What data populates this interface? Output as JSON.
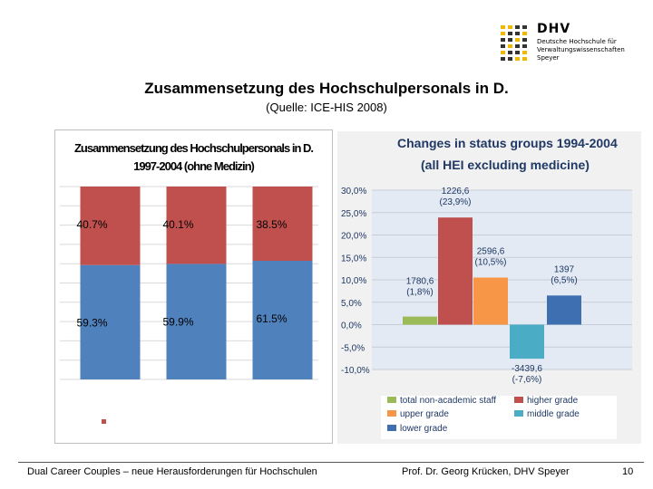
{
  "header": {
    "logo_name": "DHV",
    "logo_line1": "Deutsche Hochschule für",
    "logo_line2": "Verwaltungswissenschaften",
    "logo_line3": "Speyer",
    "title": "Zusammensetzung des Hochschulpersonals in D.",
    "subtitle": "(Quelle: ICE-HIS 2008)"
  },
  "colors": {
    "red": "#c0504d",
    "blue": "#4f81bd",
    "green": "#9bbb59",
    "orange": "#f79646",
    "cyan": "#4bacc6",
    "dark_blue": "#3e6fb0",
    "logo_yellow": "#f2b800"
  },
  "chart_data": [
    {
      "type": "bar",
      "stacked": true,
      "title_line1": "Zusammensetzung des Hochschulpersonals in D.",
      "title_line2": "1997-2004 (ohne Medizin)",
      "categories": [
        "",
        "",
        ""
      ],
      "series": [
        {
          "name": "",
          "color": "blue",
          "values": [
            59.3,
            59.9,
            61.5
          ],
          "labels": [
            "59.3%",
            "59.9%",
            "61.5%"
          ]
        },
        {
          "name": "",
          "color": "red",
          "values": [
            40.7,
            40.1,
            38.5
          ],
          "labels": [
            "40.7%",
            "40.1%",
            "38.5%"
          ]
        }
      ],
      "ylim": [
        0,
        100
      ],
      "legend": "bottom"
    },
    {
      "type": "bar",
      "title_line1": "Changes in status groups 1994-2004",
      "title_line2": "(all HEI excluding medicine)",
      "ylim": [
        -10,
        30
      ],
      "y_ticks": [
        -10,
        -5,
        0,
        5,
        10,
        15,
        20,
        25,
        30
      ],
      "y_tick_labels": [
        "-10,0%",
        "-5,0%",
        "0,0%",
        "5,0%",
        "10,0%",
        "15,0%",
        "20,0%",
        "25,0%",
        "30,0%"
      ],
      "bars": [
        {
          "name": "total non-academic staff",
          "value": 1.8,
          "label_abs": "1780,6",
          "label_pct": "(1,8%)",
          "color": "green"
        },
        {
          "name": "higher grade",
          "value": 23.9,
          "label_abs": "1226,6",
          "label_pct": "(23,9%)",
          "color": "red"
        },
        {
          "name": "upper grade",
          "value": 10.5,
          "label_abs": "2596,6",
          "label_pct": "(10,5%)",
          "color": "orange"
        },
        {
          "name": "middle grade",
          "value": -7.6,
          "label_abs": "-3439,6",
          "label_pct": "(-7,6%)",
          "color": "cyan"
        },
        {
          "name": "lower grade",
          "value": 6.5,
          "label_abs": "1397",
          "label_pct": "(6,5%)",
          "color": "dark_blue"
        }
      ],
      "legend": "bottom"
    }
  ],
  "footer": {
    "left": "Dual Career Couples – neue Herausforderungen für Hochschulen",
    "middle": "Prof. Dr. Georg Krücken, DHV Speyer",
    "page": "10"
  }
}
